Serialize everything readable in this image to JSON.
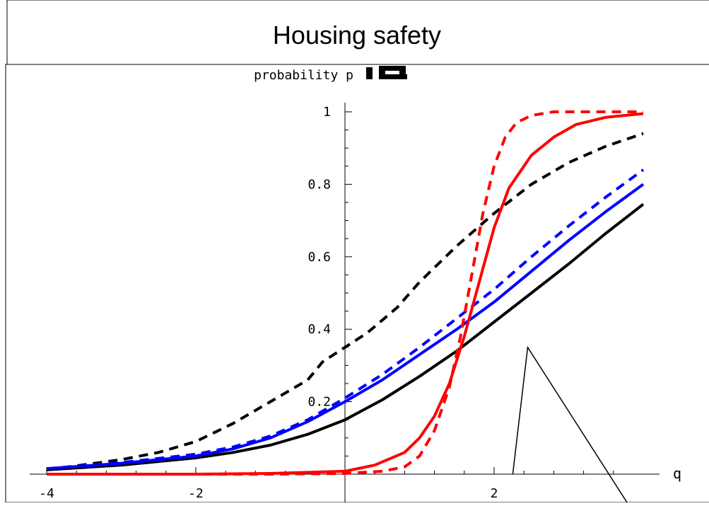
{
  "chart_data": {
    "type": "line",
    "title": "Housing safety",
    "xlabel": "q",
    "ylabel": "probability p",
    "xlim": [
      -4,
      4
    ],
    "ylim": [
      0,
      1
    ],
    "x_ticks": [
      -4,
      -2,
      2
    ],
    "x_tick_labels": [
      "-4",
      "-2",
      "2"
    ],
    "x_minor_ticks": [
      -3.6,
      -3.2,
      -2.8,
      -2.4,
      -1.6,
      -1.2,
      -0.8,
      -0.4,
      0.4,
      0.8,
      1.2,
      1.6,
      2.4,
      2.8,
      3.2,
      3.6
    ],
    "y_ticks": [
      0.2,
      0.4,
      0.6,
      0.8,
      1
    ],
    "y_tick_labels": [
      "0.2",
      "0.4",
      "0.6",
      "0.8",
      "1"
    ],
    "y_minor_ticks": [
      0.05,
      0.1,
      0.15,
      0.25,
      0.3,
      0.35,
      0.45,
      0.5,
      0.55,
      0.65,
      0.7,
      0.75,
      0.85,
      0.9,
      0.95
    ],
    "grid": false,
    "legend": "none",
    "series": [
      {
        "color": "#000000",
        "dash": false,
        "x": [
          -4,
          -3,
          -2,
          -1.5,
          -1,
          -0.5,
          0,
          0.5,
          1,
          1.5,
          2,
          2.5,
          3,
          3.5,
          4
        ],
        "y": [
          0.012,
          0.025,
          0.045,
          0.06,
          0.08,
          0.11,
          0.15,
          0.205,
          0.27,
          0.34,
          0.42,
          0.5,
          0.58,
          0.665,
          0.745
        ]
      },
      {
        "color": "#000000",
        "dash": true,
        "x": [
          -4,
          -3,
          -2.5,
          -2,
          -1.5,
          -1,
          -0.5,
          -0.3,
          0,
          0.3,
          0.7,
          1,
          1.5,
          2,
          2.5,
          3,
          3.5,
          4
        ],
        "y": [
          0.012,
          0.04,
          0.06,
          0.09,
          0.14,
          0.2,
          0.26,
          0.31,
          0.35,
          0.39,
          0.46,
          0.53,
          0.63,
          0.72,
          0.8,
          0.86,
          0.905,
          0.94
        ]
      },
      {
        "color": "#0000ff",
        "dash": false,
        "x": [
          -4,
          -3,
          -2,
          -1.5,
          -1,
          -0.5,
          0,
          0.5,
          1,
          1.5,
          2,
          2.5,
          3,
          3.5,
          4
        ],
        "y": [
          0.015,
          0.03,
          0.05,
          0.07,
          0.1,
          0.145,
          0.2,
          0.26,
          0.33,
          0.4,
          0.475,
          0.56,
          0.645,
          0.725,
          0.8
        ]
      },
      {
        "color": "#0000ff",
        "dash": true,
        "x": [
          -4,
          -3,
          -2,
          -1.5,
          -1,
          -0.5,
          0,
          0.5,
          1,
          1.5,
          2,
          2.5,
          3,
          3.5,
          4
        ],
        "y": [
          0.015,
          0.032,
          0.055,
          0.075,
          0.105,
          0.15,
          0.21,
          0.275,
          0.35,
          0.43,
          0.51,
          0.6,
          0.685,
          0.765,
          0.84
        ]
      },
      {
        "color": "#ff0000",
        "dash": false,
        "x": [
          -4,
          -3,
          -2,
          -1,
          0,
          0.4,
          0.8,
          1,
          1.2,
          1.4,
          1.6,
          1.8,
          2,
          2.2,
          2.5,
          2.8,
          3.1,
          3.5,
          4
        ],
        "y": [
          0,
          0,
          0,
          0.002,
          0.008,
          0.025,
          0.06,
          0.1,
          0.16,
          0.25,
          0.38,
          0.53,
          0.68,
          0.79,
          0.88,
          0.93,
          0.965,
          0.985,
          0.995
        ]
      },
      {
        "color": "#ff0000",
        "dash": true,
        "x": [
          -4,
          -3,
          -2,
          -1,
          0,
          0.5,
          0.8,
          1,
          1.2,
          1.4,
          1.55,
          1.7,
          1.85,
          2,
          2.15,
          2.3,
          2.5,
          2.8,
          3.2,
          4
        ],
        "y": [
          0,
          0,
          0,
          0,
          0.002,
          0.008,
          0.02,
          0.05,
          0.12,
          0.24,
          0.38,
          0.55,
          0.72,
          0.85,
          0.93,
          0.97,
          0.99,
          1,
          1,
          1
        ]
      }
    ],
    "annotations": [
      {
        "type": "triangle",
        "points": [
          [
            2.25,
            0
          ],
          [
            2.45,
            0.35
          ],
          [
            3.85,
            -0.1
          ]
        ]
      }
    ]
  }
}
